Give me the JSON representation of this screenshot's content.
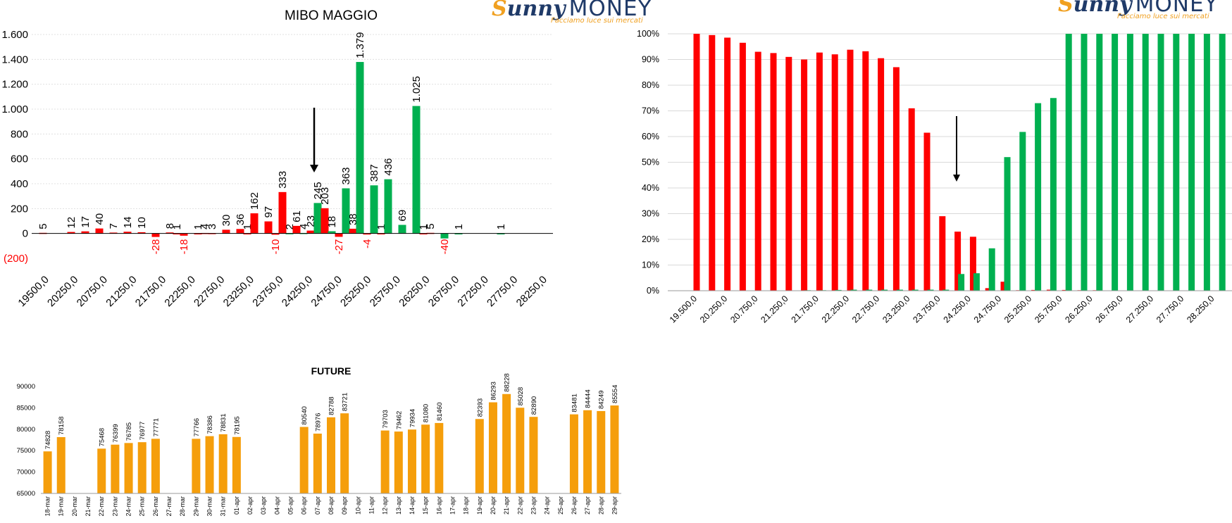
{
  "logo": {
    "sunny_s": "S",
    "sunny_rest": "unny",
    "money": "MONEY",
    "tagline": "Facciamo luce sui mercati"
  },
  "colors": {
    "red": "#ff0000",
    "green": "#00b050",
    "orange": "#f59e0b",
    "negLabel": "#ff0000"
  },
  "chart_data": [
    {
      "id": "oi-by-strike",
      "type": "bar",
      "title": "MIBO MAGGIO",
      "ylim": [
        -200,
        1600
      ],
      "yticks": [
        -200,
        0,
        200,
        400,
        600,
        800,
        1000,
        1200,
        1400,
        1600
      ],
      "ytick_labels": [
        "(200)",
        "0",
        "200",
        "400",
        "600",
        "800",
        "1.000",
        "1.200",
        "1.400",
        "1.600"
      ],
      "xtick_labels": [
        "19500,0",
        "20250,0",
        "20750,0",
        "21250,0",
        "21750,0",
        "22250,0",
        "22750,0",
        "23250,0",
        "23750,0",
        "24250,0",
        "24750,0",
        "25250,0",
        "25750,0",
        "26250,0",
        "26750,0",
        "27250,0",
        "27750,0",
        "28250,0"
      ],
      "annotation": "arrow-down at 24000",
      "bars": [
        {
          "x": 19500,
          "value": 5,
          "label": "5",
          "color": "red"
        },
        {
          "x": 20000,
          "value": 12,
          "label": "12",
          "color": "red"
        },
        {
          "x": 20250,
          "value": 17,
          "label": "17",
          "color": "red"
        },
        {
          "x": 20500,
          "value": 40,
          "label": "40",
          "color": "red"
        },
        {
          "x": 20750,
          "value": 7,
          "label": "7",
          "color": "red"
        },
        {
          "x": 21000,
          "value": 14,
          "label": "14",
          "color": "red"
        },
        {
          "x": 21250,
          "value": 10,
          "label": "10",
          "color": "red"
        },
        {
          "x": 21500,
          "value": -28,
          "label": "-28",
          "color": "red"
        },
        {
          "x": 21750,
          "value": 8,
          "label": "8",
          "color": "red"
        },
        {
          "x": 21875,
          "value": 1,
          "label": "1",
          "color": "red"
        },
        {
          "x": 22000,
          "value": -18,
          "label": "-18",
          "color": "red"
        },
        {
          "x": 22250,
          "value": 1,
          "label": "1",
          "color": "red"
        },
        {
          "x": 22375,
          "value": 4,
          "label": "4",
          "color": "red"
        },
        {
          "x": 22500,
          "value": 3,
          "label": "3",
          "color": "red"
        },
        {
          "x": 22750,
          "value": 30,
          "label": "30",
          "color": "red"
        },
        {
          "x": 23000,
          "value": 36,
          "label": "36",
          "color": "red"
        },
        {
          "x": 23125,
          "value": 1,
          "label": "1",
          "color": "red"
        },
        {
          "x": 23250,
          "value": 162,
          "label": "162",
          "color": "red"
        },
        {
          "x": 23500,
          "value": 97,
          "label": "97",
          "color": "red"
        },
        {
          "x": 23625,
          "value": -10,
          "label": "-10",
          "color": "red"
        },
        {
          "x": 23750,
          "value": 333,
          "label": "333",
          "color": "red"
        },
        {
          "x": 23875,
          "value": 2,
          "label": "2",
          "color": "green"
        },
        {
          "x": 24000,
          "value": 61,
          "label": "61",
          "color": "red"
        },
        {
          "x": 24125,
          "value": 4,
          "label": "4",
          "color": "green"
        },
        {
          "x": 24250,
          "value": 23,
          "label": "23",
          "color": "red"
        },
        {
          "x": 24375,
          "value": 245,
          "label": "245",
          "color": "green"
        },
        {
          "x": 24500,
          "value": 203,
          "label": "203",
          "color": "red"
        },
        {
          "x": 24625,
          "value": 18,
          "label": "18",
          "color": "green"
        },
        {
          "x": 24750,
          "value": -27,
          "label": "-27",
          "color": "red"
        },
        {
          "x": 24875,
          "value": 363,
          "label": "363",
          "color": "green"
        },
        {
          "x": 25000,
          "value": 38,
          "label": "38",
          "color": "red"
        },
        {
          "x": 25125,
          "value": 1379,
          "label": "1.379",
          "color": "green"
        },
        {
          "x": 25250,
          "value": -4,
          "label": "-4",
          "color": "red"
        },
        {
          "x": 25375,
          "value": 387,
          "label": "387",
          "color": "green"
        },
        {
          "x": 25500,
          "value": 1,
          "label": "1",
          "color": "red"
        },
        {
          "x": 25625,
          "value": 436,
          "label": "436",
          "color": "green"
        },
        {
          "x": 25875,
          "value": 69,
          "label": "69",
          "color": "green"
        },
        {
          "x": 26125,
          "value": 1025,
          "label": "1.025",
          "color": "green"
        },
        {
          "x": 26250,
          "value": 1,
          "label": "1",
          "color": "red"
        },
        {
          "x": 26375,
          "value": 5,
          "label": "5",
          "color": "red"
        },
        {
          "x": 26625,
          "value": -40,
          "label": "-40",
          "color": "green"
        },
        {
          "x": 26875,
          "value": 1,
          "label": "1",
          "color": "green"
        },
        {
          "x": 27625,
          "value": 1,
          "label": "1",
          "color": "green"
        }
      ]
    },
    {
      "id": "pct-by-strike",
      "type": "bar",
      "ylim": [
        0,
        100
      ],
      "yticks": [
        0,
        10,
        20,
        30,
        40,
        50,
        60,
        70,
        80,
        90,
        100
      ],
      "ytick_labels": [
        "0%",
        "10%",
        "20%",
        "30%",
        "40%",
        "50%",
        "60%",
        "70%",
        "80%",
        "90%",
        "100%"
      ],
      "xtick_labels": [
        "19.500,0",
        "20.250,0",
        "20.750,0",
        "21.250,0",
        "21.750,0",
        "22.250,0",
        "22.750,0",
        "23.250,0",
        "23.750,0",
        "24.250,0",
        "24.750,0",
        "25.250,0",
        "25.750,0",
        "26.250,0",
        "26.750,0",
        "27.250,0",
        "27.750,0",
        "28.250,0"
      ],
      "annotation": "arrow-down at 23750",
      "series": [
        {
          "name": "",
          "color": "red",
          "values": [
            100,
            99.5,
            98.5,
            96.5,
            93,
            92.5,
            91,
            90,
            92.7,
            92,
            93.8,
            93.2,
            90.5,
            87,
            71,
            61.5,
            29,
            23,
            21,
            1,
            3.5,
            0.2,
            0.3,
            0.4,
            0.3,
            0.2,
            0.2,
            0,
            0,
            0,
            0,
            0,
            0,
            0,
            0,
            0,
            0
          ]
        },
        {
          "name": "",
          "color": "green",
          "values": [
            0,
            0,
            0,
            0,
            0,
            0,
            0,
            0.2,
            0.2,
            0.3,
            0.4,
            0.4,
            0.4,
            0.4,
            0.4,
            0.4,
            0.4,
            6.5,
            6.8,
            16.5,
            52,
            61.8,
            73,
            75,
            100,
            100,
            100,
            100,
            100,
            100,
            100,
            100,
            100,
            100,
            100,
            100,
            100
          ]
        }
      ]
    },
    {
      "id": "future",
      "type": "bar",
      "title": "FUTURE",
      "ylim": [
        65000,
        90000
      ],
      "yticks": [
        65000,
        70000,
        75000,
        80000,
        85000,
        90000
      ],
      "ytick_labels": [
        "65000",
        "70000",
        "75000",
        "80000",
        "85000",
        "90000"
      ],
      "categories": [
        "18-mar",
        "19-mar",
        "20-mar",
        "21-mar",
        "22-mar",
        "23-mar",
        "24-mar",
        "25-mar",
        "26-mar",
        "27-mar",
        "28-mar",
        "29-mar",
        "30-mar",
        "31-mar",
        "01-apr",
        "02-apr",
        "03-apr",
        "04-apr",
        "05-apr",
        "06-apr",
        "07-apr",
        "08-apr",
        "09-apr",
        "10-apr",
        "11-apr",
        "12-apr",
        "13-apr",
        "14-apr",
        "15-apr",
        "16-apr",
        "17-apr",
        "18-apr",
        "19-apr",
        "20-apr",
        "21-apr",
        "22-apr",
        "23-apr",
        "24-apr",
        "25-apr",
        "26-apr",
        "27-apr",
        "28-apr",
        "29-apr"
      ],
      "values": [
        74828,
        78158,
        null,
        null,
        75468,
        76399,
        76785,
        76977,
        77771,
        null,
        null,
        77766,
        78386,
        78831,
        78195,
        null,
        null,
        null,
        null,
        80540,
        78976,
        82788,
        83721,
        null,
        null,
        79703,
        79462,
        79934,
        81080,
        81460,
        null,
        null,
        82393,
        86293,
        88228,
        85028,
        82890,
        null,
        null,
        83481,
        84444,
        84249,
        85554
      ]
    }
  ]
}
